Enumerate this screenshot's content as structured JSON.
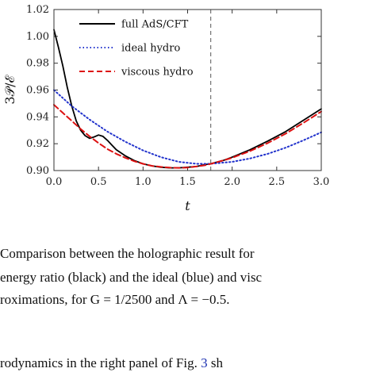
{
  "chart_data": {
    "type": "line",
    "title": "",
    "xlabel": "t",
    "ylabel": "3𝒫/ℰ",
    "xlim": [
      0.0,
      3.0
    ],
    "ylim": [
      0.9,
      1.02
    ],
    "xticks": [
      "0.0",
      "0.5",
      "1.0",
      "1.5",
      "2.0",
      "2.5",
      "3.0"
    ],
    "yticks": [
      "0.90",
      "0.92",
      "0.94",
      "0.96",
      "0.98",
      "1.00",
      "1.02"
    ],
    "vline_x": 1.76,
    "legend_position": "top-left",
    "series": [
      {
        "name": "full AdS/CFT",
        "color": "#000000",
        "style": "solid",
        "x": [
          0.0,
          0.05,
          0.1,
          0.15,
          0.2,
          0.25,
          0.3,
          0.35,
          0.4,
          0.45,
          0.5,
          0.55,
          0.6,
          0.65,
          0.7,
          0.8,
          0.9,
          1.0,
          1.1,
          1.2,
          1.3,
          1.4,
          1.5,
          1.6,
          1.7,
          1.76,
          1.9,
          2.0,
          2.2,
          2.4,
          2.6,
          2.8,
          3.0
        ],
        "y": [
          1.005,
          0.992,
          0.978,
          0.962,
          0.948,
          0.937,
          0.93,
          0.926,
          0.924,
          0.925,
          0.9265,
          0.9255,
          0.9225,
          0.919,
          0.9155,
          0.911,
          0.9075,
          0.905,
          0.9035,
          0.9025,
          0.902,
          0.902,
          0.9025,
          0.903,
          0.9045,
          0.905,
          0.9075,
          0.91,
          0.9155,
          0.922,
          0.929,
          0.9375,
          0.946
        ]
      },
      {
        "name": "ideal hydro",
        "color": "#2233cc",
        "style": "dotted",
        "x": [
          0.0,
          0.2,
          0.4,
          0.6,
          0.8,
          1.0,
          1.2,
          1.4,
          1.6,
          1.76,
          2.0,
          2.2,
          2.4,
          2.6,
          2.8,
          3.0
        ],
        "y": [
          0.96,
          0.948,
          0.938,
          0.929,
          0.9215,
          0.915,
          0.91,
          0.9065,
          0.905,
          0.905,
          0.9065,
          0.909,
          0.9125,
          0.917,
          0.9225,
          0.9285
        ]
      },
      {
        "name": "viscous hydro",
        "color": "#dd1111",
        "style": "dashed",
        "x": [
          0.0,
          0.1,
          0.2,
          0.3,
          0.4,
          0.5,
          0.6,
          0.7,
          0.8,
          0.9,
          1.0,
          1.1,
          1.2,
          1.3,
          1.4,
          1.5,
          1.6,
          1.7,
          1.76,
          1.9,
          2.0,
          2.2,
          2.4,
          2.6,
          2.8,
          3.0
        ],
        "y": [
          0.949,
          0.943,
          0.937,
          0.931,
          0.9255,
          0.9205,
          0.916,
          0.9125,
          0.9095,
          0.907,
          0.905,
          0.9035,
          0.9027,
          0.9022,
          0.902,
          0.9022,
          0.903,
          0.904,
          0.905,
          0.9075,
          0.9095,
          0.9145,
          0.9205,
          0.9275,
          0.9355,
          0.944
        ]
      }
    ]
  },
  "caption": {
    "line1": "Comparison between the holographic result for",
    "line2": "energy ratio (black) and the ideal (blue) and visc",
    "line3": "roximations, for G = 1/2500 and Λ = −0.5.",
    "line4_prefix": "rodynamics in the right panel of Fig.",
    "line4_ref": "3",
    "line4_suffix": "sh"
  }
}
